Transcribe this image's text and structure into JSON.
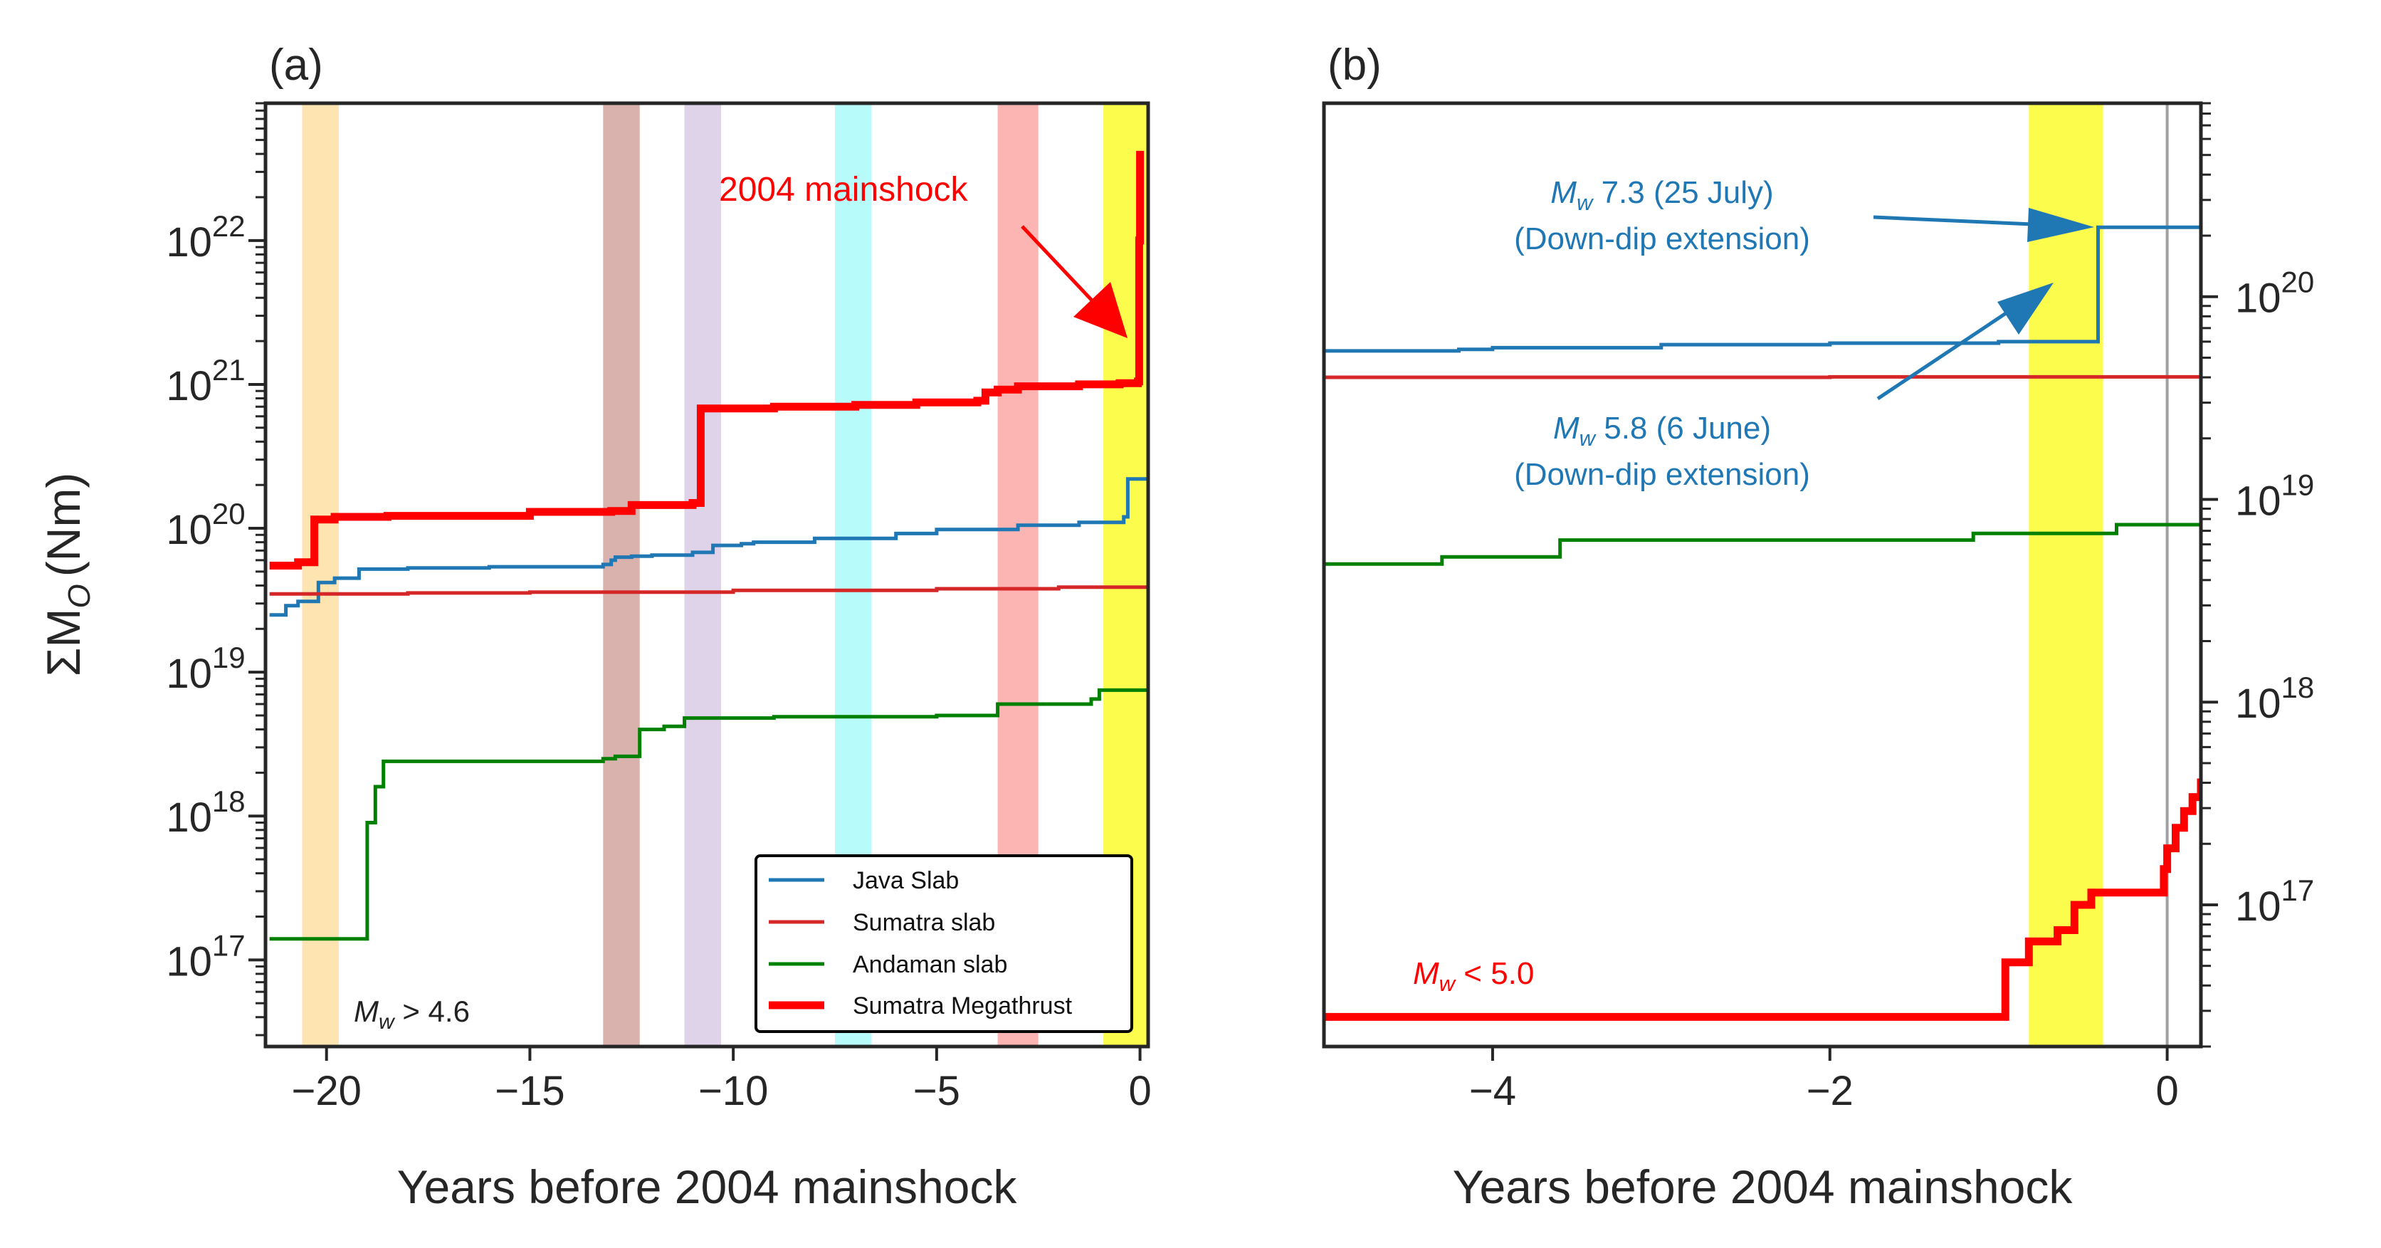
{
  "chart_data": [
    {
      "type": "line",
      "panel_label": "(a)",
      "xlabel": "Years before 2004 mainshock",
      "ylabel": "ΣM",
      "ylabel_sub": "O",
      "ylabel_unit": "(Nm)",
      "log_y": true,
      "xlim": [
        -21.5,
        0.2
      ],
      "ylim": [
        2.5e+16,
        9e+22
      ],
      "xticks": [
        -20,
        -15,
        -10,
        -5,
        0
      ],
      "xtick_labels": [
        "−20",
        "−15",
        "−10",
        "−5",
        "0"
      ],
      "yticks": [
        17,
        18,
        19,
        20,
        21,
        22
      ],
      "ytick_base": "10",
      "ytick_exponents": [
        "17",
        "18",
        "19",
        "20",
        "21",
        "22"
      ],
      "grid": false,
      "legend_position": "lower-right",
      "shaded_bands": [
        {
          "x0": -20.6,
          "x1": -19.7,
          "color": "#fde4b0"
        },
        {
          "x0": -13.2,
          "x1": -12.3,
          "color": "#d9b2ad"
        },
        {
          "x0": -11.2,
          "x1": -10.3,
          "color": "#dfd3ea"
        },
        {
          "x0": -7.5,
          "x1": -6.6,
          "color": "#b8fbfb"
        },
        {
          "x0": -3.5,
          "x1": -2.5,
          "color": "#fdb5b3"
        },
        {
          "x0": -0.9,
          "x1": 0.2,
          "color": "#fcfc4c"
        }
      ],
      "series": [
        {
          "name": "Java Slab",
          "color": "#1f77b4",
          "width": 5,
          "x": [
            -21.4,
            -21.0,
            -20.7,
            -20.2,
            -19.8,
            -19.2,
            -18.0,
            -16.0,
            -13.2,
            -13.0,
            -12.9,
            -12.5,
            -12.0,
            -11.0,
            -10.5,
            -9.8,
            -9.5,
            -8.0,
            -6.0,
            -5.0,
            -3.0,
            -1.5,
            -0.4,
            -0.3,
            0.2
          ],
          "y": [
            2.5e+19,
            2.9e+19,
            3.1e+19,
            4.2e+19,
            4.5e+19,
            5.2e+19,
            5.3e+19,
            5.4e+19,
            5.6e+19,
            6e+19,
            6.3e+19,
            6.4e+19,
            6.5e+19,
            6.8e+19,
            7.6e+19,
            7.8e+19,
            8e+19,
            8.5e+19,
            9.2e+19,
            9.8e+19,
            1.05e+20,
            1.1e+20,
            1.2e+20,
            2.2e+20,
            2.2e+20
          ]
        },
        {
          "name": "Sumatra slab",
          "color": "#d62728",
          "width": 5,
          "x": [
            -21.4,
            -18.0,
            -15.0,
            -10.0,
            -5.0,
            -2.0,
            0.2
          ],
          "y": [
            3.5e+19,
            3.55e+19,
            3.6e+19,
            3.7e+19,
            3.8e+19,
            3.9e+19,
            4e+19
          ]
        },
        {
          "name": "Andaman slab",
          "color": "#008000",
          "width": 5,
          "x": [
            -21.4,
            -19.3,
            -19.0,
            -18.8,
            -18.6,
            -13.2,
            -12.9,
            -12.3,
            -11.7,
            -11.2,
            -9.0,
            -5.0,
            -3.5,
            -1.2,
            -1.0,
            0.2
          ],
          "y": [
            1.4e+17,
            1.4e+17,
            9e+17,
            1.6e+18,
            2.4e+18,
            2.5e+18,
            2.6e+18,
            4e+18,
            4.2e+18,
            4.8e+18,
            4.9e+18,
            5e+18,
            6e+18,
            6.5e+18,
            7.5e+18,
            7.6e+18
          ]
        },
        {
          "name": "Sumatra Megathrust",
          "color": "#ff0000",
          "width": 11,
          "x": [
            -21.4,
            -20.7,
            -20.3,
            -19.8,
            -18.5,
            -15.0,
            -13.0,
            -12.5,
            -11.0,
            -10.8,
            -9.0,
            -7.0,
            -5.5,
            -4.0,
            -3.8,
            -3.5,
            -3.0,
            -1.5,
            -0.5,
            -0.05,
            -0.02,
            0.0
          ],
          "y": [
            5.5e+19,
            5.8e+19,
            1.15e+20,
            1.2e+20,
            1.22e+20,
            1.3e+20,
            1.32e+20,
            1.45e+20,
            1.5e+20,
            6.8e+20,
            7e+20,
            7.2e+20,
            7.5e+20,
            7.7e+20,
            8.8e+20,
            9.2e+20,
            9.7e+20,
            1e+21,
            1.02e+21,
            1.05e+21,
            1e+22,
            4.2e+22
          ]
        }
      ],
      "annotations": [
        {
          "text": "2004 mainshock",
          "color": "#ff0000"
        },
        {
          "text_main": "M",
          "text_sub": "w",
          "text_rest": " > 4.6",
          "color": "#222222"
        }
      ]
    },
    {
      "type": "line",
      "panel_label": "(b)",
      "xlabel": "Years before 2004 mainshock",
      "log_y": true,
      "xlim": [
        -5.0,
        0.2
      ],
      "ylim": [
        2e+16,
        9e+20
      ],
      "xticks": [
        -4,
        -2,
        0
      ],
      "xtick_labels": [
        "−4",
        "−2",
        "0"
      ],
      "yticks": [
        17,
        18,
        19,
        20
      ],
      "ytick_base": "10",
      "ytick_exponents": [
        "17",
        "18",
        "19",
        "20"
      ],
      "grid": false,
      "shaded_bands": [
        {
          "x0": -0.82,
          "x1": -0.38,
          "color": "#fcfc4c"
        }
      ],
      "vertical_line": {
        "x": 0,
        "color": "#a0a0a0"
      },
      "series": [
        {
          "name": "Java Slab",
          "color": "#1f77b4",
          "width": 5,
          "x": [
            -5.0,
            -4.2,
            -4.0,
            -3.0,
            -2.0,
            -1.0,
            -0.41,
            -0.41,
            0.2
          ],
          "y": [
            5.4e+19,
            5.5e+19,
            5.6e+19,
            5.8e+19,
            5.9e+19,
            6e+19,
            6.1e+19,
            2.2e+20,
            2.2e+20
          ]
        },
        {
          "name": "Sumatra slab",
          "color": "#d62728",
          "width": 5,
          "x": [
            -5.0,
            -2.0,
            0.2
          ],
          "y": [
            4e+19,
            4.02e+19,
            4.05e+19
          ]
        },
        {
          "name": "Andaman slab",
          "color": "#008000",
          "width": 5,
          "x": [
            -5.0,
            -4.3,
            -3.6,
            -1.15,
            -0.3,
            0.2
          ],
          "y": [
            4.8e+18,
            5.2e+18,
            6.3e+18,
            6.8e+18,
            7.5e+18,
            7.6e+18
          ]
        },
        {
          "name": "Sumatra Megathrust",
          "color": "#ff0000",
          "width": 11,
          "x": [
            -5.0,
            -0.96,
            -0.96,
            -0.82,
            -0.65,
            -0.55,
            -0.45,
            -0.05,
            -0.02,
            0.0,
            0.05,
            0.1,
            0.15,
            0.2
          ],
          "y": [
            2.8e+16,
            2.8e+16,
            5.2e+16,
            6.6e+16,
            7.5e+16,
            1e+17,
            1.15e+17,
            1.15e+17,
            1.5e+17,
            1.9e+17,
            2.4e+17,
            2.9e+17,
            3.4e+17,
            4.2e+17
          ]
        }
      ],
      "annotations": [
        {
          "text_main": "M",
          "text_sub": "w",
          "text_rest": " 7.3 (25 July)",
          "line2": "(Down-dip extension)",
          "color": "#1f77b4"
        },
        {
          "text_main": "M",
          "text_sub": "w",
          "text_rest": " 5.8 (6 June)",
          "line2": "(Down-dip extension)",
          "color": "#1f77b4"
        },
        {
          "text_main": "M",
          "text_sub": "w",
          "text_rest": " < 5.0",
          "color": "#ff0000"
        }
      ]
    }
  ]
}
